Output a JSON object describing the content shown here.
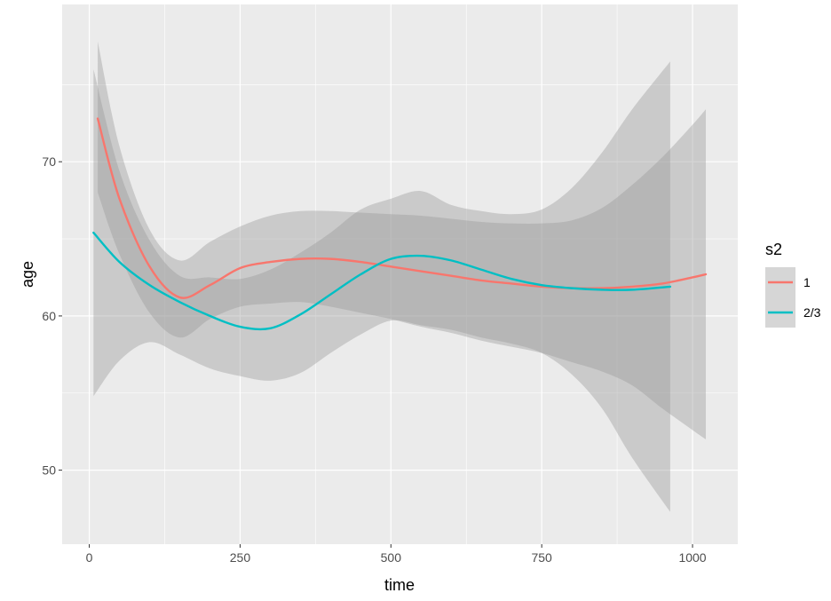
{
  "chart_data": {
    "type": "line",
    "xlabel": "time",
    "ylabel": "age",
    "xlim": [
      -45,
      1075
    ],
    "ylim": [
      45.2,
      80.2
    ],
    "x_ticks": [
      0,
      250,
      500,
      750,
      1000
    ],
    "x_tick_labels": [
      "0",
      "250",
      "500",
      "750",
      "1000"
    ],
    "y_ticks": [
      50,
      60,
      70
    ],
    "y_tick_labels": [
      "50",
      "60",
      "70"
    ],
    "grid": true,
    "legend": {
      "title": "s2",
      "position": "right"
    },
    "series": [
      {
        "name": "1",
        "color": "#F8766D",
        "x": [
          14,
          50,
          100,
          150,
          200,
          250,
          300,
          350,
          400,
          450,
          500,
          550,
          600,
          650,
          700,
          750,
          800,
          850,
          900,
          950,
          1000,
          1022
        ],
        "y": [
          72.8,
          67.6,
          63.2,
          61.2,
          62.0,
          63.1,
          63.5,
          63.7,
          63.7,
          63.5,
          63.2,
          62.9,
          62.6,
          62.3,
          62.1,
          61.9,
          61.8,
          61.8,
          61.9,
          62.1,
          62.5,
          62.7
        ],
        "ci_lower": [
          68.0,
          64.0,
          60.2,
          58.6,
          59.8,
          60.6,
          60.8,
          60.9,
          60.6,
          60.2,
          59.8,
          59.3,
          58.9,
          58.4,
          58.0,
          57.6,
          57.0,
          56.4,
          55.5,
          54.0,
          52.6,
          52.0
        ],
        "ci_upper": [
          77.8,
          71.0,
          65.6,
          63.6,
          64.8,
          65.8,
          66.5,
          66.8,
          66.8,
          66.7,
          66.6,
          66.5,
          66.3,
          66.1,
          66.0,
          66.0,
          66.2,
          67.0,
          68.5,
          70.3,
          72.4,
          73.4
        ]
      },
      {
        "name": "2/3",
        "color": "#00BFC4",
        "x": [
          7,
          50,
          100,
          150,
          200,
          250,
          300,
          350,
          400,
          450,
          500,
          550,
          600,
          650,
          700,
          750,
          800,
          850,
          900,
          963
        ],
        "y": [
          65.4,
          63.5,
          62.0,
          60.9,
          60.0,
          59.3,
          59.2,
          60.1,
          61.4,
          62.7,
          63.7,
          63.9,
          63.6,
          63.0,
          62.4,
          62.0,
          61.8,
          61.7,
          61.7,
          61.9
        ],
        "ci_lower": [
          54.8,
          57.1,
          58.3,
          57.5,
          56.6,
          56.1,
          55.8,
          56.3,
          57.6,
          58.8,
          59.7,
          59.4,
          59.1,
          58.6,
          58.2,
          57.6,
          56.2,
          54.0,
          50.8,
          47.3
        ],
        "ci_upper": [
          76.0,
          69.4,
          64.9,
          62.6,
          62.5,
          62.4,
          63.0,
          64.1,
          65.4,
          66.9,
          67.6,
          68.1,
          67.2,
          66.8,
          66.6,
          66.9,
          68.3,
          70.6,
          73.4,
          76.5
        ]
      }
    ]
  }
}
